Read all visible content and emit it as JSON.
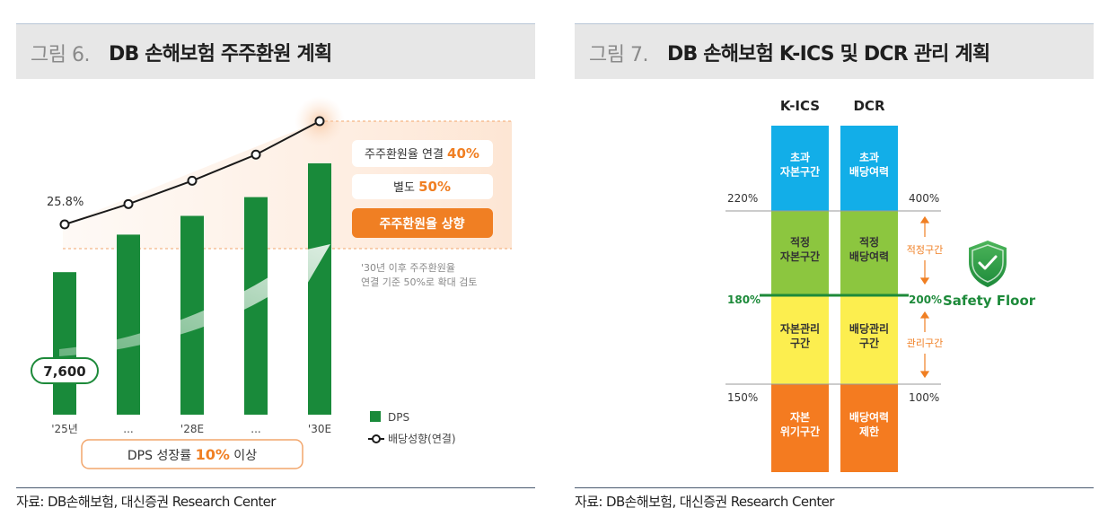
{
  "figure6": {
    "title_number": "그림 6.",
    "title": "DB 손해보험 주주환원 계획",
    "source": "자료: DB손해보험, 대신증권 Research Center",
    "chart_data": {
      "type": "bar",
      "categories": [
        "'25년",
        "...",
        "'28E",
        "...",
        "'30E"
      ],
      "series": [
        {
          "name": "DPS",
          "kind": "bar",
          "values": [
            7600,
            9600,
            10600,
            11600,
            13400
          ]
        },
        {
          "name": "배당성향(연결)",
          "kind": "line",
          "values": [
            25.8,
            28.6,
            31.8,
            35.4,
            40.0
          ]
        }
      ],
      "colors": {
        "bar": "#198a3a",
        "line": "#1a1a1a",
        "accent": "#f07f23"
      },
      "data_labels": {
        "first_dps": "7,600",
        "first_payout": "25.8%"
      },
      "callouts": {
        "box1_prefix": "주주환원율 연결 ",
        "box1_value": "40%",
        "box2_prefix": "별도 ",
        "box2_value": "50%",
        "box3": "주주환원율 상향",
        "note_line1": "'30년 이후 주주환원율",
        "note_line2": "연결 기준 50%로 확대 검토",
        "bottom_prefix": "DPS 성장률 ",
        "bottom_value": "10%",
        "bottom_suffix": " 이상"
      },
      "legend": [
        "DPS",
        "배당성향(연결)"
      ],
      "legend_position": "bottom-right",
      "grid": false
    }
  },
  "figure7": {
    "title_number": "그림 7.",
    "title": "DB 손해보험 K-ICS 및 DCR 관리 계획",
    "source": "자료: DB손해보험, 대신증권 Research Center",
    "chart_data": {
      "type": "table",
      "columns": [
        "K-ICS",
        "DCR"
      ],
      "zones": [
        {
          "kics": [
            "초과",
            "자본구간"
          ],
          "dcr": [
            "초과",
            "배당여력"
          ],
          "color": "#12aee8"
        },
        {
          "kics": [
            "적정",
            "자본구간"
          ],
          "dcr": [
            "적정",
            "배당여력"
          ],
          "color": "#8cc63f"
        },
        {
          "kics": [
            "자본관리",
            "구간"
          ],
          "dcr": [
            "배당관리",
            "구간"
          ],
          "color": "#fcee4f"
        },
        {
          "kics": [
            "자본",
            "위기구간"
          ],
          "dcr": [
            "배당여력",
            "제한"
          ],
          "color": "#f47b20"
        }
      ],
      "kics_thresholds": [
        "220%",
        "180%",
        "150%"
      ],
      "dcr_thresholds": [
        "400%",
        "200%",
        "100%"
      ],
      "side_labels": [
        "적정구간",
        "관리구간"
      ],
      "floor_label": "Safety Floor",
      "colors": {
        "floor": "#1d8a3a",
        "arrow": "#f07f23"
      }
    }
  }
}
